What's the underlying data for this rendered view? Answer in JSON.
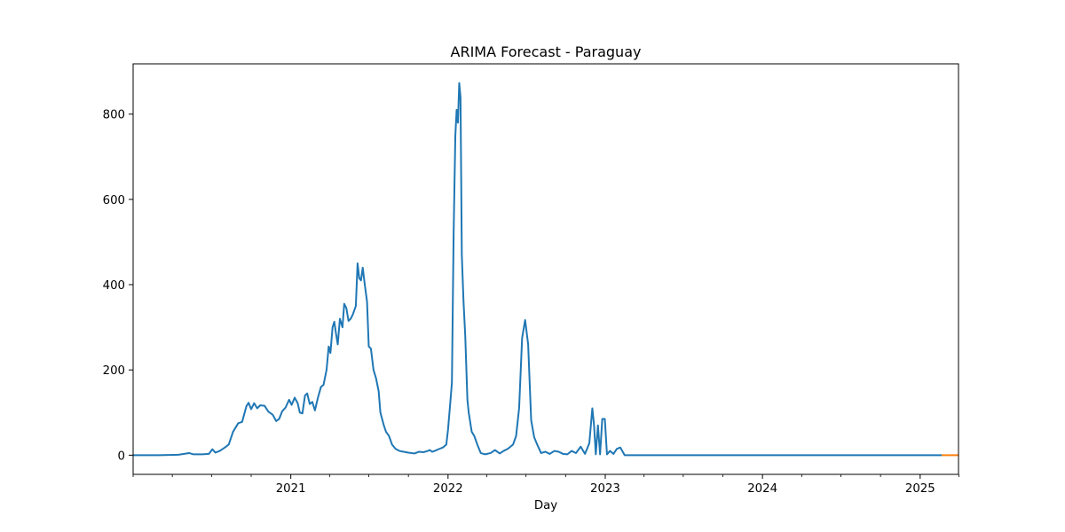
{
  "chart_data": {
    "type": "line",
    "title": "ARIMA Forecast - Paraguay",
    "xlabel": "Day",
    "ylabel": "",
    "x_type": "date",
    "xlim": [
      "2020-01-01",
      "2025-03-31"
    ],
    "ylim": [
      -45,
      918
    ],
    "grid": false,
    "legend": "none",
    "x_ticks": [
      {
        "value": "2021-01-01",
        "label": "2021"
      },
      {
        "value": "2022-01-01",
        "label": "2022"
      },
      {
        "value": "2023-01-01",
        "label": "2023"
      },
      {
        "value": "2024-01-01",
        "label": "2024"
      },
      {
        "value": "2025-01-01",
        "label": "2025"
      }
    ],
    "x_minor_ticks": [
      "2020-01-01",
      "2020-04-01",
      "2020-07-01",
      "2020-10-01",
      "2021-04-01",
      "2021-07-01",
      "2021-10-01",
      "2022-04-01",
      "2022-07-01",
      "2022-10-01",
      "2023-04-01",
      "2023-07-01",
      "2023-10-01",
      "2024-04-01",
      "2024-07-01",
      "2024-10-01",
      "2025-04-01"
    ],
    "y_ticks": [
      0,
      200,
      400,
      600,
      800
    ],
    "series": [
      {
        "color": "#1f77b4",
        "points": [
          [
            "2020-01-01",
            0
          ],
          [
            "2020-03-01",
            0
          ],
          [
            "2020-04-15",
            1
          ],
          [
            "2020-05-10",
            5
          ],
          [
            "2020-05-20",
            2
          ],
          [
            "2020-06-10",
            2
          ],
          [
            "2020-06-25",
            3
          ],
          [
            "2020-07-03",
            14
          ],
          [
            "2020-07-10",
            6
          ],
          [
            "2020-07-20",
            10
          ],
          [
            "2020-08-01",
            18
          ],
          [
            "2020-08-10",
            25
          ],
          [
            "2020-08-20",
            55
          ],
          [
            "2020-09-01",
            75
          ],
          [
            "2020-09-10",
            78
          ],
          [
            "2020-09-20",
            115
          ],
          [
            "2020-09-25",
            123
          ],
          [
            "2020-10-01",
            108
          ],
          [
            "2020-10-08",
            122
          ],
          [
            "2020-10-15",
            110
          ],
          [
            "2020-10-22",
            117
          ],
          [
            "2020-11-01",
            116
          ],
          [
            "2020-11-10",
            102
          ],
          [
            "2020-11-20",
            95
          ],
          [
            "2020-11-28",
            80
          ],
          [
            "2020-12-05",
            85
          ],
          [
            "2020-12-12",
            103
          ],
          [
            "2020-12-20",
            112
          ],
          [
            "2020-12-28",
            130
          ],
          [
            "2021-01-03",
            118
          ],
          [
            "2021-01-10",
            135
          ],
          [
            "2021-01-17",
            122
          ],
          [
            "2021-01-22",
            100
          ],
          [
            "2021-01-28",
            98
          ],
          [
            "2021-02-03",
            140
          ],
          [
            "2021-02-08",
            145
          ],
          [
            "2021-02-14",
            120
          ],
          [
            "2021-02-20",
            125
          ],
          [
            "2021-02-26",
            105
          ],
          [
            "2021-03-05",
            135
          ],
          [
            "2021-03-12",
            160
          ],
          [
            "2021-03-18",
            165
          ],
          [
            "2021-03-25",
            200
          ],
          [
            "2021-03-30",
            255
          ],
          [
            "2021-04-03",
            240
          ],
          [
            "2021-04-08",
            300
          ],
          [
            "2021-04-12",
            313
          ],
          [
            "2021-04-16",
            285
          ],
          [
            "2021-04-20",
            260
          ],
          [
            "2021-04-25",
            320
          ],
          [
            "2021-05-01",
            300
          ],
          [
            "2021-05-05",
            355
          ],
          [
            "2021-05-10",
            345
          ],
          [
            "2021-05-15",
            315
          ],
          [
            "2021-05-20",
            320
          ],
          [
            "2021-05-25",
            330
          ],
          [
            "2021-06-01",
            350
          ],
          [
            "2021-06-05",
            450
          ],
          [
            "2021-06-09",
            415
          ],
          [
            "2021-06-13",
            410
          ],
          [
            "2021-06-17",
            440
          ],
          [
            "2021-06-22",
            398
          ],
          [
            "2021-06-27",
            360
          ],
          [
            "2021-07-01",
            255
          ],
          [
            "2021-07-06",
            250
          ],
          [
            "2021-07-12",
            200
          ],
          [
            "2021-07-18",
            180
          ],
          [
            "2021-07-24",
            150
          ],
          [
            "2021-07-28",
            100
          ],
          [
            "2021-08-05",
            70
          ],
          [
            "2021-08-10",
            55
          ],
          [
            "2021-08-17",
            45
          ],
          [
            "2021-08-24",
            25
          ],
          [
            "2021-09-01",
            15
          ],
          [
            "2021-09-10",
            10
          ],
          [
            "2021-09-20",
            8
          ],
          [
            "2021-10-01",
            6
          ],
          [
            "2021-10-15",
            4
          ],
          [
            "2021-10-25",
            8
          ],
          [
            "2021-11-05",
            7
          ],
          [
            "2021-11-15",
            10
          ],
          [
            "2021-11-20",
            12
          ],
          [
            "2021-11-25",
            8
          ],
          [
            "2021-12-01",
            10
          ],
          [
            "2021-12-10",
            14
          ],
          [
            "2021-12-20",
            18
          ],
          [
            "2021-12-28",
            25
          ],
          [
            "2022-01-01",
            60
          ],
          [
            "2022-01-06",
            120
          ],
          [
            "2022-01-10",
            170
          ],
          [
            "2022-01-14",
            520
          ],
          [
            "2022-01-18",
            750
          ],
          [
            "2022-01-21",
            810
          ],
          [
            "2022-01-24",
            780
          ],
          [
            "2022-01-27",
            873
          ],
          [
            "2022-01-30",
            840
          ],
          [
            "2022-02-02",
            470
          ],
          [
            "2022-02-06",
            360
          ],
          [
            "2022-02-10",
            280
          ],
          [
            "2022-02-15",
            130
          ],
          [
            "2022-02-18",
            100
          ],
          [
            "2022-02-25",
            55
          ],
          [
            "2022-03-03",
            45
          ],
          [
            "2022-03-10",
            25
          ],
          [
            "2022-03-18",
            5
          ],
          [
            "2022-03-28",
            2
          ],
          [
            "2022-04-10",
            5
          ],
          [
            "2022-04-20",
            12
          ],
          [
            "2022-05-01",
            4
          ],
          [
            "2022-05-10",
            10
          ],
          [
            "2022-05-20",
            15
          ],
          [
            "2022-06-01",
            25
          ],
          [
            "2022-06-08",
            45
          ],
          [
            "2022-06-15",
            110
          ],
          [
            "2022-06-22",
            275
          ],
          [
            "2022-06-29",
            317
          ],
          [
            "2022-07-06",
            260
          ],
          [
            "2022-07-13",
            82
          ],
          [
            "2022-07-20",
            42
          ],
          [
            "2022-07-27",
            25
          ],
          [
            "2022-08-05",
            5
          ],
          [
            "2022-08-15",
            8
          ],
          [
            "2022-08-25",
            3
          ],
          [
            "2022-09-05",
            10
          ],
          [
            "2022-09-15",
            8
          ],
          [
            "2022-09-25",
            3
          ],
          [
            "2022-10-05",
            2
          ],
          [
            "2022-10-15",
            10
          ],
          [
            "2022-10-25",
            5
          ],
          [
            "2022-11-05",
            20
          ],
          [
            "2022-11-15",
            3
          ],
          [
            "2022-11-25",
            28
          ],
          [
            "2022-12-02",
            110
          ],
          [
            "2022-12-06",
            70
          ],
          [
            "2022-12-10",
            2
          ],
          [
            "2022-12-15",
            70
          ],
          [
            "2022-12-20",
            2
          ],
          [
            "2022-12-25",
            85
          ],
          [
            "2022-12-31",
            85
          ],
          [
            "2023-01-05",
            2
          ],
          [
            "2023-01-12",
            10
          ],
          [
            "2023-01-20",
            3
          ],
          [
            "2023-01-28",
            15
          ],
          [
            "2023-02-05",
            18
          ],
          [
            "2023-02-15",
            0
          ],
          [
            "2023-03-01",
            0
          ],
          [
            "2025-02-20",
            0
          ]
        ]
      },
      {
        "color": "#ff7f0e",
        "points": [
          [
            "2025-02-20",
            0
          ],
          [
            "2025-03-31",
            0
          ]
        ]
      }
    ]
  }
}
